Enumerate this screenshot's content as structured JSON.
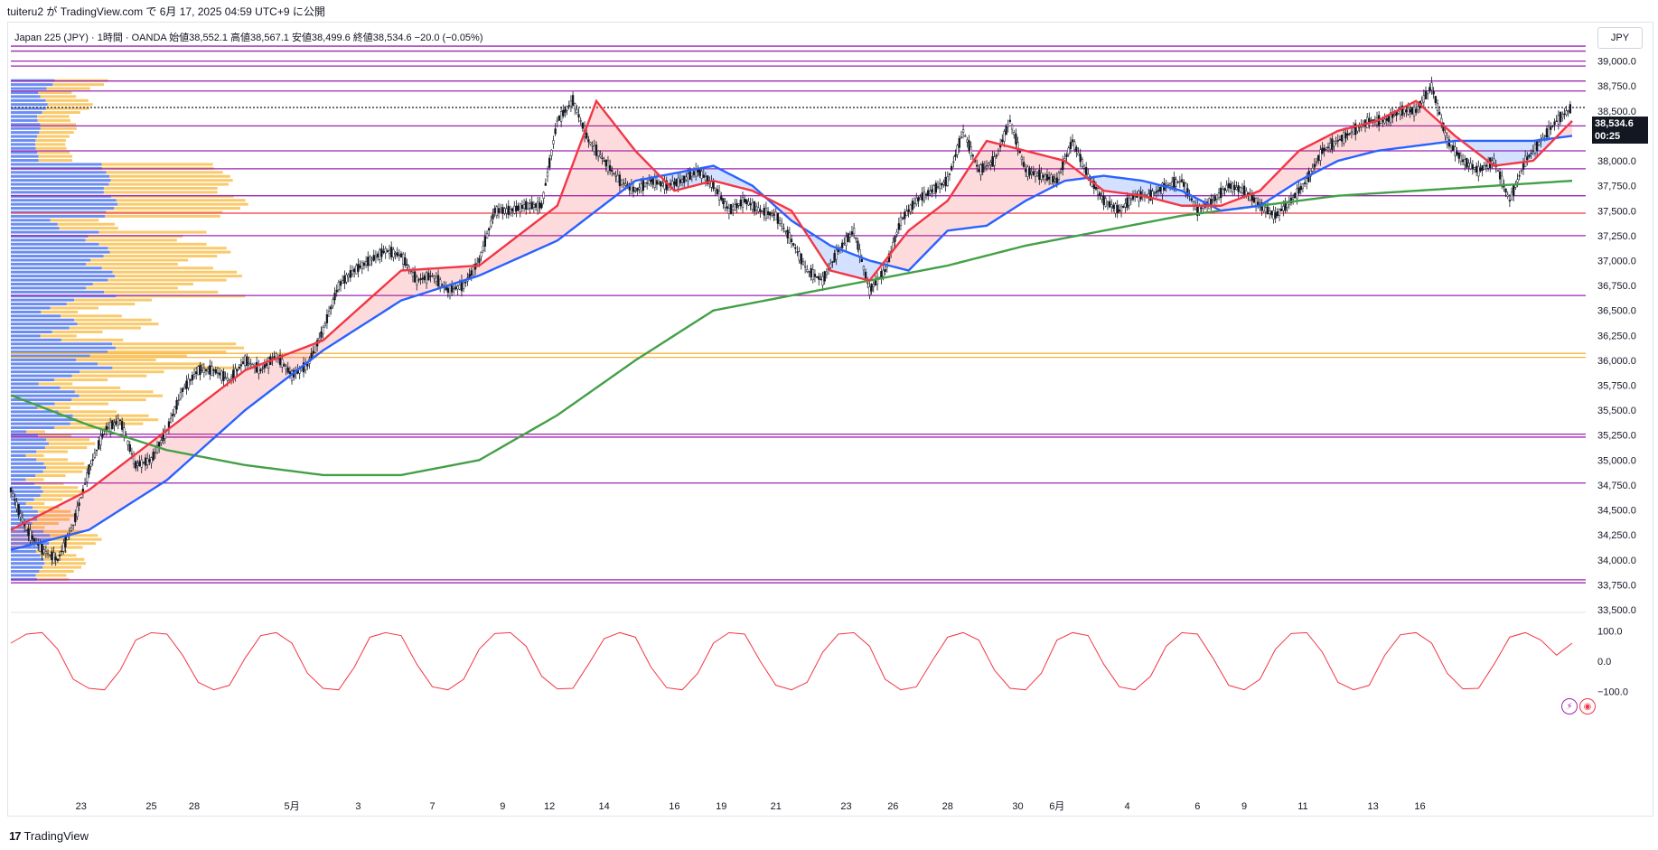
{
  "caption": "tuiteru2 が TradingView.com で 6月 17, 2025 04:59 UTC+9 に公開",
  "symbol_line": "Japan 225 (JPY) · 1時間 · OANDA  始値38,552.1  高値38,567.1  安値38,499.6  終値38,534.6  −20.0 (−0.05%)",
  "currency": "JPY",
  "last_price": "38,534.6",
  "countdown": "00:25",
  "brand": "TradingView",
  "icons": [
    "tradingview-logo-icon",
    "lightning-icon",
    "record-icon"
  ],
  "colors": {
    "candle": "#131722",
    "ema_fast": "#f23645",
    "ema_mid": "#2962ff",
    "ema_slow": "#43a047",
    "hline_purple": "#9c27b0",
    "hline_red": "#f23645",
    "hline_orange": "#f5b53d",
    "vp_blue": "#5b7ff0",
    "vp_orange": "#f9c35a",
    "oscillator": "#f23645"
  },
  "chart_data": [
    {
      "type": "line",
      "title": "",
      "xlabel": "",
      "ylabel": "",
      "ylim": [
        33500,
        39250
      ],
      "y_ticks": [
        "39,000.0",
        "38,750.0",
        "38,500.0",
        "38,250.0",
        "38,000.0",
        "37,750.0",
        "37,500.0",
        "37,250.0",
        "37,000.0",
        "36,750.0",
        "36,500.0",
        "36,250.0",
        "36,000.0",
        "35,750.0",
        "35,500.0",
        "35,250.0",
        "35,000.0",
        "34,750.0",
        "34,500.0",
        "34,250.0",
        "34,000.0",
        "33,750.0",
        "33,500.0"
      ],
      "x_ticks": [
        "23",
        "25",
        "28",
        "5月",
        "3",
        "7",
        "9",
        "12",
        "14",
        "16",
        "19",
        "21",
        "23",
        "26",
        "28",
        "30",
        "6月",
        "4",
        "6",
        "9",
        "11",
        "13",
        "16"
      ],
      "candles_summary": {
        "x_index": [
          0,
          4,
          8,
          12,
          16,
          20,
          24,
          28,
          32,
          36,
          40,
          44,
          48,
          52,
          56,
          60,
          64,
          68,
          72,
          76,
          80,
          84,
          88,
          92,
          96,
          100,
          104,
          108,
          112,
          116,
          120,
          124,
          128,
          132,
          136,
          140,
          144,
          148,
          152,
          156,
          160,
          164,
          168,
          172,
          176,
          180,
          184,
          188,
          192,
          196,
          200,
          204,
          208,
          212,
          216,
          220,
          224,
          228,
          232,
          236,
          240,
          244,
          248,
          252,
          256,
          260,
          264,
          268,
          272,
          276,
          280,
          284,
          288,
          292,
          296,
          300,
          304,
          308,
          312,
          316,
          320,
          324,
          328,
          332,
          336,
          340,
          344,
          348,
          352,
          356,
          360,
          364,
          368,
          372,
          376,
          380,
          384,
          388,
          392,
          396,
          400
        ],
        "close": [
          34700,
          34300,
          34100,
          34000,
          34350,
          34900,
          35300,
          35400,
          34950,
          35000,
          35300,
          35700,
          35900,
          35900,
          35800,
          36000,
          35900,
          36050,
          35850,
          35950,
          36300,
          36750,
          36900,
          37000,
          37100,
          37050,
          36800,
          36850,
          36700,
          36750,
          37000,
          37500,
          37500,
          37550,
          37550,
          38400,
          38600,
          38200,
          38000,
          37800,
          37700,
          37800,
          37750,
          37800,
          37900,
          37750,
          37500,
          37600,
          37500,
          37450,
          37200,
          36900,
          36800,
          37100,
          37300,
          36700,
          36900,
          37400,
          37600,
          37700,
          37800,
          38300,
          37900,
          38000,
          38400,
          37900,
          37850,
          37800,
          38200,
          37850,
          37600,
          37500,
          37650,
          37650,
          37750,
          37800,
          37500,
          37600,
          37750,
          37700,
          37550,
          37450,
          37600,
          37800,
          38100,
          38200,
          38300,
          38400,
          38400,
          38500,
          38500,
          38750,
          38200,
          38000,
          37900,
          38000,
          37600,
          38000,
          38200,
          38400,
          38534.6
        ]
      },
      "series": [
        {
          "name": "",
          "role": "ema-fast",
          "x": [
            0,
            20,
            40,
            60,
            80,
            100,
            120,
            140,
            150,
            160,
            170,
            180,
            190,
            200,
            210,
            220,
            230,
            240,
            250,
            260,
            270,
            280,
            290,
            300,
            310,
            320,
            330,
            340,
            350,
            360,
            370,
            380,
            390,
            400
          ],
          "values": [
            34300,
            34700,
            35300,
            35900,
            36200,
            36900,
            36950,
            37550,
            38600,
            38100,
            37700,
            37800,
            37700,
            37500,
            36900,
            36800,
            37300,
            37600,
            38200,
            38100,
            38000,
            37700,
            37650,
            37550,
            37550,
            37700,
            38100,
            38300,
            38400,
            38600,
            38250,
            37950,
            38000,
            38400
          ]
        },
        {
          "name": "",
          "role": "ema-mid",
          "x": [
            0,
            20,
            40,
            60,
            80,
            100,
            120,
            140,
            160,
            180,
            190,
            200,
            210,
            220,
            230,
            240,
            250,
            260,
            270,
            280,
            290,
            300,
            310,
            320,
            330,
            340,
            350,
            360,
            370,
            380,
            390,
            400
          ],
          "values": [
            34100,
            34300,
            34800,
            35500,
            36100,
            36600,
            36850,
            37200,
            37800,
            37950,
            37750,
            37400,
            37150,
            37000,
            36900,
            37300,
            37350,
            37600,
            37800,
            37850,
            37800,
            37700,
            37500,
            37550,
            37800,
            38000,
            38100,
            38150,
            38200,
            38200,
            38200,
            38250
          ]
        },
        {
          "name": "",
          "role": "ema-slow",
          "x": [
            0,
            20,
            40,
            60,
            80,
            100,
            120,
            140,
            160,
            180,
            200,
            220,
            240,
            260,
            280,
            300,
            320,
            340,
            360,
            380,
            400
          ],
          "values": [
            35650,
            35350,
            35100,
            34950,
            34850,
            34850,
            35000,
            35450,
            36000,
            36500,
            36650,
            36800,
            36950,
            37150,
            37300,
            37450,
            37550,
            37650,
            37700,
            37750,
            37800
          ]
        }
      ],
      "horizontal_lines": [
        {
          "price": 39150,
          "color": "purple"
        },
        {
          "price": 39100,
          "color": "purple"
        },
        {
          "price": 39000,
          "color": "purple"
        },
        {
          "price": 38950,
          "color": "purple"
        },
        {
          "price": 38800,
          "color": "purple"
        },
        {
          "price": 38700,
          "color": "purple"
        },
        {
          "price": 38534.6,
          "color": "black-dotted"
        },
        {
          "price": 38350,
          "color": "purple"
        },
        {
          "price": 38100,
          "color": "purple"
        },
        {
          "price": 37920,
          "color": "purple"
        },
        {
          "price": 37650,
          "color": "purple"
        },
        {
          "price": 37475,
          "color": "red"
        },
        {
          "price": 37250,
          "color": "purple"
        },
        {
          "price": 36650,
          "color": "purple"
        },
        {
          "price": 36070,
          "color": "orange"
        },
        {
          "price": 36030,
          "color": "orange"
        },
        {
          "price": 35260,
          "color": "purple"
        },
        {
          "price": 35230,
          "color": "purple"
        },
        {
          "price": 34770,
          "color": "purple"
        },
        {
          "price": 33800,
          "color": "purple"
        },
        {
          "price": 33770,
          "color": "purple"
        }
      ],
      "grid": false,
      "legend": "none"
    },
    {
      "type": "line",
      "title": "",
      "role": "oscillator",
      "ylim": [
        -120,
        120
      ],
      "y_ticks": [
        "100.0",
        "0.0",
        "−100.0"
      ],
      "series": [
        {
          "name": "",
          "values": [
            60,
            90,
            95,
            40,
            -60,
            -90,
            -95,
            -30,
            70,
            95,
            90,
            20,
            -70,
            -95,
            -80,
            10,
            85,
            95,
            60,
            -40,
            -90,
            -95,
            -20,
            80,
            95,
            85,
            -10,
            -85,
            -95,
            -60,
            40,
            92,
            95,
            50,
            -50,
            -92,
            -90,
            -10,
            75,
            95,
            80,
            -20,
            -88,
            -95,
            -40,
            60,
            95,
            90,
            0,
            -80,
            -95,
            -70,
            30,
            90,
            95,
            50,
            -60,
            -95,
            -85,
            0,
            80,
            95,
            70,
            -30,
            -90,
            -95,
            -40,
            70,
            95,
            85,
            -10,
            -85,
            -95,
            -50,
            50,
            95,
            90,
            10,
            -80,
            -95,
            -60,
            40,
            92,
            95,
            30,
            -70,
            -95,
            -80,
            20,
            88,
            95,
            60,
            -40,
            -92,
            -90,
            -10,
            80,
            95,
            70,
            20,
            60
          ]
        }
      ]
    }
  ]
}
